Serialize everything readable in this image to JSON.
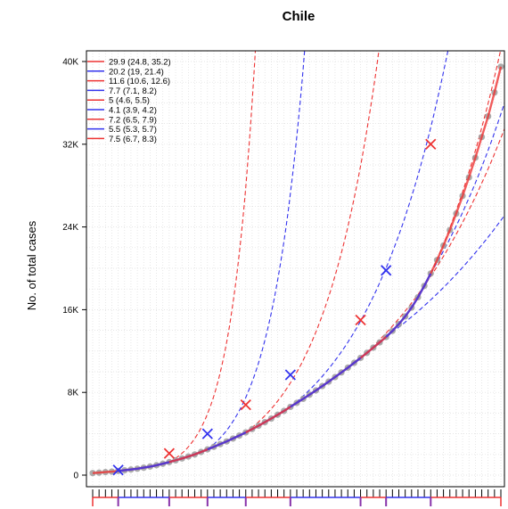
{
  "chart_data": {
    "type": "line",
    "title": "Chile",
    "ylabel": "No. of total cases",
    "xlabel": "",
    "ylim": [
      0,
      40000
    ],
    "y_ticks": [
      0,
      8000,
      16000,
      24000,
      32000,
      40000
    ],
    "y_tick_labels": [
      "0",
      "8K",
      "16K",
      "24K",
      "32K",
      "40K"
    ],
    "x_range": [
      0,
      65
    ],
    "grid": true,
    "legend_position": "top-left",
    "colors": {
      "red": "#ee3333",
      "blue": "#3333ee",
      "points": "#999999"
    },
    "observed_x": [
      0,
      1,
      2,
      3,
      4,
      5,
      6,
      7,
      8,
      9,
      10,
      11,
      12,
      13,
      14,
      15,
      16,
      17,
      18,
      19,
      20,
      21,
      22,
      23,
      24,
      25,
      26,
      27,
      28,
      29,
      30,
      31,
      32,
      33,
      34,
      35,
      36,
      37,
      38,
      39,
      40,
      41,
      42,
      43,
      44,
      45,
      46,
      47,
      48,
      49,
      50,
      51,
      52,
      53,
      54,
      55,
      56,
      57,
      58,
      59,
      60,
      61,
      62,
      63,
      64
    ],
    "observed_cases": [
      200,
      238,
      290,
      340,
      400,
      470,
      540,
      620,
      720,
      830,
      960,
      1100,
      1260,
      1430,
      1610,
      1800,
      2000,
      2240,
      2490,
      2740,
      3000,
      3260,
      3540,
      3830,
      4130,
      4450,
      4780,
      5120,
      5470,
      5840,
      6210,
      6600,
      6990,
      7380,
      7780,
      8190,
      8610,
      9040,
      9480,
      9930,
      10390,
      10860,
      11340,
      11830,
      12330,
      12840,
      13360,
      13950,
      14600,
      15350,
      16200,
      17200,
      18300,
      19500,
      20800,
      22200,
      23700,
      25300,
      27000,
      28800,
      30700,
      32700,
      34700,
      37000,
      39500
    ],
    "segments": [
      {
        "label": "29.9 (24.8, 35.2)",
        "color": "red",
        "x_start": 0,
        "x_end": 12,
        "y_start": 230,
        "y_end": 2150
      },
      {
        "label": "20.2 (19, 21.4)",
        "color": "blue",
        "x_start": 4,
        "x_end": 18,
        "y_start": 500,
        "y_end": 4000
      },
      {
        "label": "11.6 (10.6, 12.6)",
        "color": "red",
        "x_start": 12,
        "x_end": 24,
        "y_start": 2150,
        "y_end": 6800
      },
      {
        "label": "7.7 (7.1, 8.2)",
        "color": "blue",
        "x_start": 18,
        "x_end": 31,
        "y_start": 4000,
        "y_end": 9700
      },
      {
        "label": "5 (4.6, 5.5)",
        "color": "red",
        "x_start": 24,
        "x_end": 42,
        "y_start": 6800,
        "y_end": 15000
      },
      {
        "label": "4.1 (3.9, 4.2)",
        "color": "blue",
        "x_start": 31,
        "x_end": 46,
        "y_start": 9700,
        "y_end": 19800
      },
      {
        "label": "7.2 (6.5, 7.9)",
        "color": "red",
        "x_start": 42,
        "x_end": 53,
        "y_start": 15000,
        "y_end": 32000
      },
      {
        "label": "5.5 (5.3, 5.7)",
        "color": "blue",
        "x_start": 46,
        "x_end": 53,
        "y_start": 19800,
        "y_end": 32000
      },
      {
        "label": "7.5 (6.7, 8.3)",
        "color": "red",
        "x_start": 53,
        "x_end": 64,
        "y_start": 32000,
        "y_end": 39500
      }
    ],
    "breakpoints": [
      {
        "x": 4,
        "y": 500,
        "color": "blue"
      },
      {
        "x": 12,
        "y": 2100,
        "color": "red"
      },
      {
        "x": 18,
        "y": 4000,
        "color": "blue"
      },
      {
        "x": 24,
        "y": 6800,
        "color": "red"
      },
      {
        "x": 31,
        "y": 9700,
        "color": "blue"
      },
      {
        "x": 42,
        "y": 15000,
        "color": "red"
      },
      {
        "x": 46,
        "y": 19800,
        "color": "blue"
      },
      {
        "x": 53,
        "y": 32000,
        "color": "red"
      }
    ],
    "projections": [
      {
        "color": "red",
        "x_start": 12,
        "k": 0.258
      },
      {
        "color": "blue",
        "x_start": 18,
        "k": 0.184
      },
      {
        "color": "red",
        "x_start": 24,
        "k": 0.11
      },
      {
        "color": "blue",
        "x_start": 31,
        "k": 0.074
      },
      {
        "color": "red",
        "x_start": 42,
        "k": 0.048
      },
      {
        "color": "blue",
        "x_start": 46,
        "k": 0.034
      },
      {
        "color": "red",
        "x_start": 53,
        "k": 0.068
      },
      {
        "color": "blue",
        "x_start": 53,
        "k": 0.053
      }
    ]
  }
}
